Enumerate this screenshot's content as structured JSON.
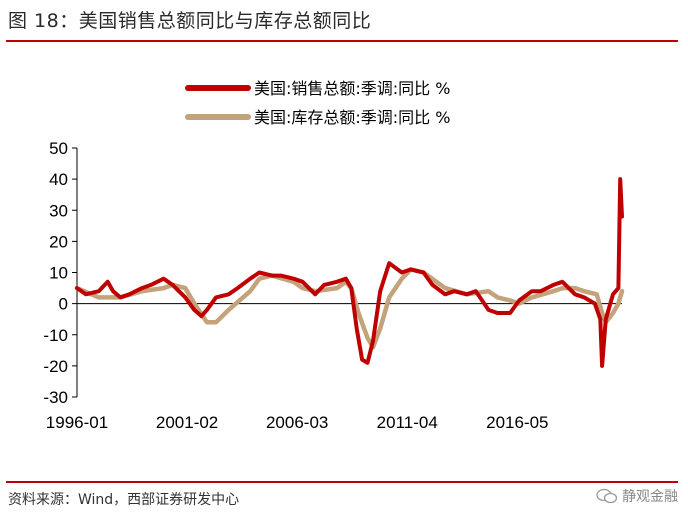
{
  "header": {
    "title": "图 18：美国销售总额同比与库存总额同比"
  },
  "footer": {
    "source": "资料来源：Wind，西部证券研发中心",
    "watermark": "静观金融"
  },
  "chart_data": {
    "type": "line",
    "title": "",
    "xlabel": "",
    "ylabel": "",
    "ylim": [
      -30,
      50
    ],
    "yticks": [
      -30,
      -20,
      -10,
      0,
      10,
      20,
      30,
      40,
      50
    ],
    "xtick_labels": [
      "1996-01",
      "2001-02",
      "2006-03",
      "2011-04",
      "2016-05"
    ],
    "x_range": [
      "1996-01",
      "2021-03"
    ],
    "grid": false,
    "legend_position": "top-center",
    "series": [
      {
        "name": "美国:销售总额:季调:同比 %",
        "color": "#c00000",
        "x": [
          "1996-01",
          "1996-06",
          "1997-01",
          "1997-06",
          "1997-09",
          "1998-01",
          "1998-06",
          "1999-01",
          "1999-06",
          "2000-01",
          "2000-06",
          "2001-01",
          "2001-06",
          "2001-10",
          "2002-01",
          "2002-06",
          "2003-01",
          "2003-06",
          "2004-01",
          "2004-06",
          "2005-01",
          "2005-06",
          "2006-01",
          "2006-06",
          "2007-01",
          "2007-06",
          "2008-01",
          "2008-06",
          "2008-09",
          "2008-12",
          "2009-03",
          "2009-06",
          "2009-09",
          "2010-01",
          "2010-06",
          "2011-01",
          "2011-06",
          "2012-01",
          "2012-06",
          "2013-01",
          "2013-06",
          "2014-01",
          "2014-06",
          "2015-01",
          "2015-06",
          "2016-01",
          "2016-06",
          "2017-01",
          "2017-06",
          "2018-01",
          "2018-06",
          "2019-01",
          "2019-06",
          "2019-12",
          "2020-03",
          "2020-04",
          "2020-06",
          "2020-10",
          "2021-01",
          "2021-02",
          "2021-03"
        ],
        "values": [
          5,
          3,
          4,
          7,
          4,
          2,
          3,
          5,
          6,
          8,
          6,
          2,
          -2,
          -4,
          -2,
          2,
          3,
          5,
          8,
          10,
          9,
          9,
          8,
          7,
          3,
          6,
          7,
          8,
          5,
          -8,
          -18,
          -19,
          -12,
          4,
          13,
          10,
          11,
          10,
          6,
          3,
          4,
          3,
          4,
          -2,
          -3,
          -3,
          1,
          4,
          4,
          6,
          7,
          3,
          2,
          0,
          -5,
          -20,
          -5,
          3,
          5,
          40,
          28
        ]
      },
      {
        "name": "美国:库存总额:季调:同比 %",
        "color": "#c4a27a",
        "x": [
          "1996-01",
          "1997-01",
          "1998-01",
          "1999-01",
          "2000-01",
          "2000-06",
          "2001-01",
          "2001-06",
          "2002-01",
          "2002-06",
          "2003-01",
          "2004-01",
          "2004-06",
          "2005-01",
          "2006-01",
          "2006-06",
          "2007-01",
          "2008-01",
          "2008-06",
          "2008-09",
          "2009-01",
          "2009-06",
          "2009-09",
          "2010-01",
          "2010-06",
          "2011-01",
          "2011-06",
          "2012-01",
          "2013-01",
          "2014-01",
          "2015-01",
          "2015-06",
          "2016-01",
          "2016-06",
          "2017-01",
          "2018-01",
          "2018-06",
          "2019-01",
          "2019-06",
          "2020-01",
          "2020-04",
          "2020-06",
          "2020-10",
          "2021-01",
          "2021-03"
        ],
        "values": [
          5,
          2,
          2,
          4,
          5,
          6,
          5,
          0,
          -6,
          -6,
          -2,
          4,
          8,
          9,
          7,
          5,
          4,
          5,
          7,
          5,
          -3,
          -11,
          -14,
          -8,
          2,
          8,
          11,
          10,
          5,
          3,
          4,
          2,
          1,
          0,
          2,
          4,
          5,
          5,
          4,
          3,
          -3,
          -6,
          -3,
          0,
          4
        ]
      }
    ]
  }
}
